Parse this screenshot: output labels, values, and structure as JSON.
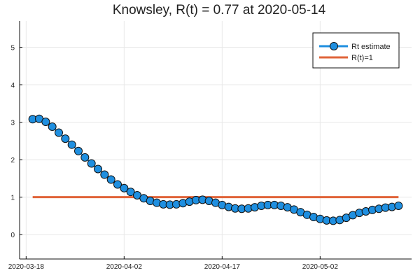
{
  "chart_data": {
    "type": "line",
    "title": "Knowsley, R(t) = 0.77 at 2020-05-14",
    "xlabel": "",
    "ylabel": "",
    "x_start": "2020-03-18",
    "x_ticks": [
      {
        "label": "2020-03-18",
        "day": 0
      },
      {
        "label": "2020-04-02",
        "day": 15
      },
      {
        "label": "2020-04-17",
        "day": 30
      },
      {
        "label": "2020-05-02",
        "day": 45
      }
    ],
    "y_ticks": [
      0,
      1,
      2,
      3,
      4,
      5
    ],
    "xlim": [
      -1,
      59
    ],
    "ylim": [
      -0.65,
      5.7
    ],
    "grid": true,
    "legend_position": "top-right",
    "series": [
      {
        "name": "Rt estimate",
        "style": "line-with-markers",
        "color": "#1f8fe0",
        "marker_color": "#1f8fe0",
        "marker_edge": "#111111",
        "x": [
          1,
          2,
          3,
          4,
          5,
          6,
          7,
          8,
          9,
          10,
          11,
          12,
          13,
          14,
          15,
          16,
          17,
          18,
          19,
          20,
          21,
          22,
          23,
          24,
          25,
          26,
          27,
          28,
          29,
          30,
          31,
          32,
          33,
          34,
          35,
          36,
          37,
          38,
          39,
          40,
          41,
          42,
          43,
          44,
          45,
          46,
          47,
          48,
          49,
          50,
          51,
          52,
          53,
          54,
          55,
          56,
          57
        ],
        "values": [
          3.08,
          3.09,
          3.01,
          2.88,
          2.72,
          2.56,
          2.4,
          2.23,
          2.06,
          1.9,
          1.75,
          1.6,
          1.47,
          1.34,
          1.24,
          1.14,
          1.05,
          0.97,
          0.9,
          0.85,
          0.81,
          0.8,
          0.81,
          0.84,
          0.88,
          0.92,
          0.93,
          0.9,
          0.85,
          0.79,
          0.74,
          0.7,
          0.69,
          0.7,
          0.73,
          0.77,
          0.79,
          0.79,
          0.77,
          0.73,
          0.67,
          0.6,
          0.53,
          0.47,
          0.42,
          0.38,
          0.37,
          0.39,
          0.45,
          0.52,
          0.58,
          0.62,
          0.66,
          0.69,
          0.72,
          0.74,
          0.77
        ]
      },
      {
        "name": "R(t)=1",
        "style": "line",
        "color": "#e0643a",
        "x": [
          1,
          57
        ],
        "values": [
          1,
          1
        ]
      }
    ]
  }
}
